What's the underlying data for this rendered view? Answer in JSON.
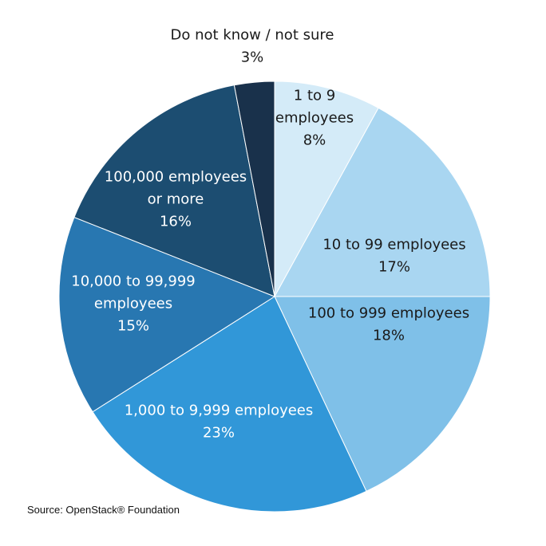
{
  "chart_data": {
    "type": "pie",
    "title": "",
    "source": "Source: OpenStack® Foundation",
    "slices": [
      {
        "lines": [
          "1 to 9",
          "employees"
        ],
        "value": 8,
        "pct": "8%",
        "color": "#d4ebf8",
        "text_color": "#1a1a1a"
      },
      {
        "lines": [
          "10 to 99 employees"
        ],
        "value": 17,
        "pct": "17%",
        "color": "#a9d6f1",
        "text_color": "#1a1a1a"
      },
      {
        "lines": [
          "100 to 999 employees"
        ],
        "value": 18,
        "pct": "18%",
        "color": "#7fc0e8",
        "text_color": "#1a1a1a"
      },
      {
        "lines": [
          "1,000 to 9,999 employees"
        ],
        "value": 23,
        "pct": "23%",
        "color": "#3197d8",
        "text_color": "#ffffff"
      },
      {
        "lines": [
          "10,000 to 99,999",
          "employees"
        ],
        "value": 15,
        "pct": "15%",
        "color": "#2877b1",
        "text_color": "#ffffff"
      },
      {
        "lines": [
          "100,000 employees",
          "or more"
        ],
        "value": 16,
        "pct": "16%",
        "color": "#1c4d71",
        "text_color": "#ffffff"
      },
      {
        "lines": [
          "Do not know / not sure"
        ],
        "value": 3,
        "pct": "3%",
        "color": "#19314b",
        "text_color": "#1a1a1a"
      }
    ]
  }
}
